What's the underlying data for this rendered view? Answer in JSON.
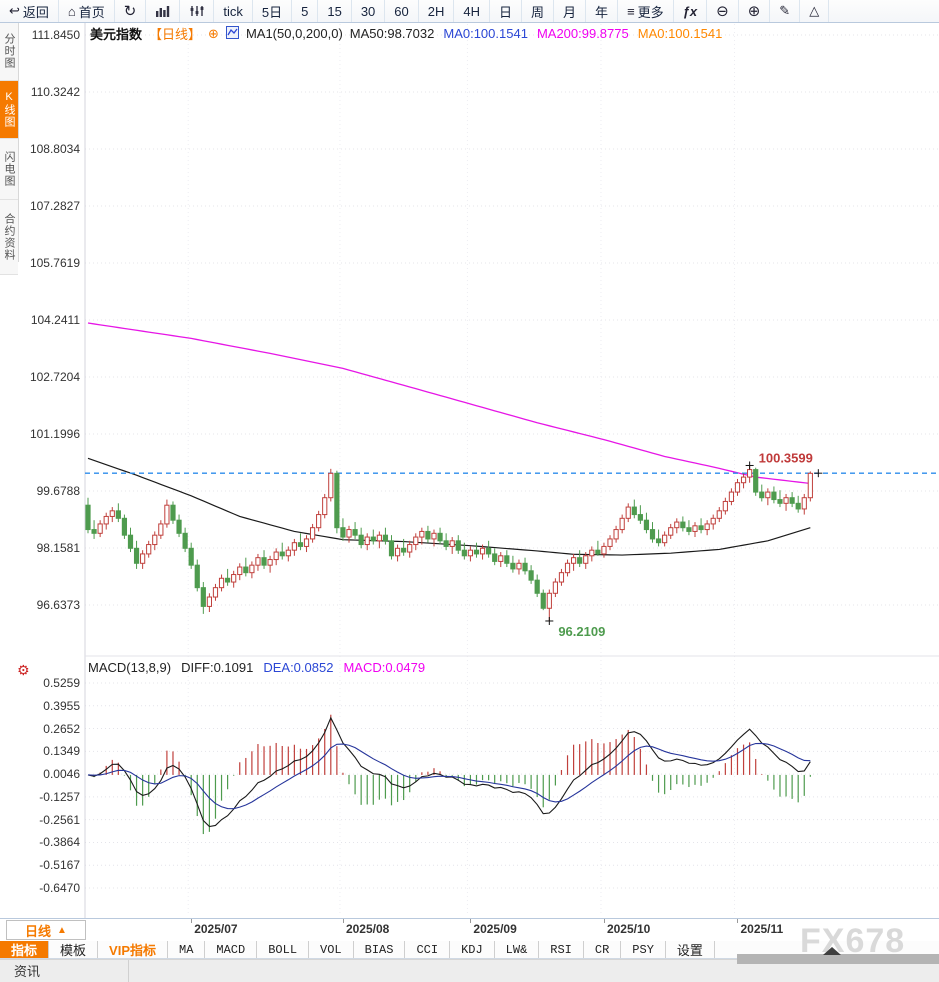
{
  "toolbar": {
    "items": [
      {
        "name": "back",
        "icon": "back",
        "label": "返回"
      },
      {
        "name": "home",
        "icon": "home",
        "label": "首页"
      },
      {
        "name": "refresh",
        "icon": "refresh",
        "label": ""
      },
      {
        "name": "chart-style-bars",
        "icon": "bar-chart",
        "label": ""
      },
      {
        "name": "chart-style-candles",
        "icon": "sliders",
        "label": ""
      },
      {
        "name": "interval-tick",
        "icon": "",
        "label": "tick"
      },
      {
        "name": "interval-5d",
        "icon": "",
        "label": "5日"
      },
      {
        "name": "interval-5",
        "icon": "",
        "label": "5"
      },
      {
        "name": "interval-15",
        "icon": "",
        "label": "15"
      },
      {
        "name": "interval-30",
        "icon": "",
        "label": "30"
      },
      {
        "name": "interval-60",
        "icon": "",
        "label": "60"
      },
      {
        "name": "interval-2h",
        "icon": "",
        "label": "2H"
      },
      {
        "name": "interval-4h",
        "icon": "",
        "label": "4H"
      },
      {
        "name": "interval-day",
        "icon": "",
        "label": "日"
      },
      {
        "name": "interval-week",
        "icon": "",
        "label": "周"
      },
      {
        "name": "interval-month",
        "icon": "",
        "label": "月"
      },
      {
        "name": "interval-year",
        "icon": "",
        "label": "年"
      },
      {
        "name": "more-menu",
        "icon": "menu",
        "label": "更多"
      },
      {
        "name": "indicator-fx",
        "icon": "fx",
        "label": ""
      },
      {
        "name": "zoom-out",
        "icon": "zoom-out",
        "label": ""
      },
      {
        "name": "zoom-in",
        "icon": "zoom-in",
        "label": ""
      },
      {
        "name": "draw-tool",
        "icon": "pencil",
        "label": ""
      },
      {
        "name": "shape-tool",
        "icon": "triangle",
        "label": ""
      }
    ]
  },
  "sidebar": {
    "items": [
      {
        "label": "分时图",
        "active": false
      },
      {
        "label": "K线图",
        "active": true
      },
      {
        "label": "闪电图",
        "active": false
      },
      {
        "label": "合约资料",
        "active": false
      }
    ]
  },
  "chart_header": {
    "symbol": "美元指数",
    "period": "【日线】",
    "add_icon": "⊕",
    "ma_settings": "MA1(50,0,200,0)",
    "values": [
      {
        "label": "MA50:98.7032",
        "color": "#222222"
      },
      {
        "label": "MA0:100.1541",
        "color": "#2b47d5"
      },
      {
        "label": "MA200:99.8775",
        "color": "#f000f0"
      },
      {
        "label": "MA0:100.1541",
        "color": "#ff8800"
      }
    ]
  },
  "macd_header": {
    "title": "MACD(13,8,9)",
    "diff": "DIFF:0.1091",
    "dea": "DEA:0.0852",
    "macd": "MACD:0.0479",
    "colors": {
      "title": "#222222",
      "diff": "#222222",
      "dea": "#2b47d5",
      "macd": "#f000f0"
    }
  },
  "period_button": {
    "label": "日线",
    "arrow": "▲"
  },
  "indicator_bar": {
    "items": [
      {
        "label": "指标",
        "style": "active"
      },
      {
        "label": "模板",
        "style": ""
      },
      {
        "label": "VIP指标",
        "style": "vip"
      },
      {
        "label": "MA",
        "style": "mono"
      },
      {
        "label": "MACD",
        "style": "mono"
      },
      {
        "label": "BOLL",
        "style": "mono"
      },
      {
        "label": "VOL",
        "style": "mono"
      },
      {
        "label": "BIAS",
        "style": "mono"
      },
      {
        "label": "CCI",
        "style": "mono"
      },
      {
        "label": "KDJ",
        "style": "mono"
      },
      {
        "label": "LW&",
        "style": "mono"
      },
      {
        "label": "RSI",
        "style": "mono"
      },
      {
        "label": "CR",
        "style": "mono"
      },
      {
        "label": "PSY",
        "style": "mono"
      },
      {
        "label": "设置",
        "style": ""
      }
    ]
  },
  "bottom": {
    "news_label": "资讯"
  },
  "watermark": "FX678",
  "colors": {
    "accent": "#f57a00",
    "up": "#c0403c",
    "down": "#4e9b4e",
    "ma50": "#1a1a1a",
    "ma200": "#e616e6",
    "diff_line": "#1a1a1a",
    "dea_line": "#26359b",
    "last_price_line": "#2d8ceb",
    "high_label": "#c03a3a",
    "low_label": "#4e9b4e",
    "grid": "#e4e4ea"
  },
  "chart_data": {
    "type": "candlestick+macd",
    "title": "美元指数 日线 (US Dollar Index, daily)",
    "y_axis_labels": [
      "111.8450",
      "110.3242",
      "108.8034",
      "107.2827",
      "105.7619",
      "104.2411",
      "102.7204",
      "101.1996",
      "99.6788",
      "98.1581",
      "96.6373"
    ],
    "macd_axis_labels": [
      "0.5259",
      "0.3955",
      "0.2652",
      "0.1349",
      "0.0046",
      "-0.1257",
      "-0.2561",
      "-0.3864",
      "-0.5167",
      "-0.6470"
    ],
    "x_labels": [
      "2025/07",
      "2025/08",
      "2025/09",
      "2025/10",
      "2025/11"
    ],
    "month_tick_indices": [
      17,
      42,
      63,
      85,
      107
    ],
    "last_price": 100.1541,
    "last_price_label": "100.1541",
    "high_marker": {
      "index": 109,
      "value": 100.3599,
      "label": "100.3599"
    },
    "low_marker": {
      "index": 76,
      "value": 96.2109,
      "label": "96.2109"
    },
    "macd_params": {
      "short": 8,
      "long": 13,
      "mid": 9,
      "diff": 0.1091,
      "dea": 0.0852,
      "bar": 0.0479
    },
    "ma50_waypoints": [
      [
        0,
        100.55
      ],
      [
        8,
        100.1
      ],
      [
        17,
        99.55
      ],
      [
        25,
        99.0
      ],
      [
        34,
        98.6
      ],
      [
        42,
        98.38
      ],
      [
        52,
        98.33
      ],
      [
        63,
        98.22
      ],
      [
        74,
        98.08
      ],
      [
        80,
        97.99
      ],
      [
        88,
        97.97
      ],
      [
        96,
        98.02
      ],
      [
        104,
        98.12
      ],
      [
        112,
        98.35
      ],
      [
        119,
        98.7
      ]
    ],
    "ma200_waypoints": [
      [
        0,
        104.16
      ],
      [
        17,
        103.75
      ],
      [
        30,
        103.35
      ],
      [
        42,
        102.95
      ],
      [
        52,
        102.5
      ],
      [
        63,
        102.0
      ],
      [
        74,
        101.5
      ],
      [
        85,
        101.05
      ],
      [
        95,
        100.6
      ],
      [
        103,
        100.32
      ],
      [
        110,
        100.05
      ],
      [
        119,
        99.88
      ]
    ],
    "ohlc": [
      [
        99.3,
        99.5,
        98.55,
        98.65
      ],
      [
        98.65,
        98.9,
        98.4,
        98.55
      ],
      [
        98.55,
        98.9,
        98.45,
        98.8
      ],
      [
        98.8,
        99.1,
        98.65,
        99.0
      ],
      [
        99.0,
        99.25,
        98.85,
        99.15
      ],
      [
        99.15,
        99.35,
        98.85,
        98.95
      ],
      [
        98.95,
        99.05,
        98.4,
        98.5
      ],
      [
        98.5,
        98.7,
        98.05,
        98.15
      ],
      [
        98.15,
        98.35,
        97.6,
        97.75
      ],
      [
        97.75,
        98.1,
        97.6,
        98.0
      ],
      [
        98.0,
        98.35,
        97.9,
        98.25
      ],
      [
        98.25,
        98.6,
        98.1,
        98.5
      ],
      [
        98.5,
        98.9,
        98.4,
        98.8
      ],
      [
        98.8,
        99.45,
        98.7,
        99.3
      ],
      [
        99.3,
        99.4,
        98.8,
        98.9
      ],
      [
        98.9,
        99.05,
        98.45,
        98.55
      ],
      [
        98.55,
        98.7,
        98.05,
        98.15
      ],
      [
        98.15,
        98.3,
        97.6,
        97.7
      ],
      [
        97.7,
        97.85,
        97.0,
        97.1
      ],
      [
        97.1,
        97.25,
        96.4,
        96.6
      ],
      [
        96.6,
        96.95,
        96.45,
        96.85
      ],
      [
        96.85,
        97.2,
        96.75,
        97.1
      ],
      [
        97.1,
        97.45,
        97.0,
        97.35
      ],
      [
        97.35,
        97.6,
        97.15,
        97.25
      ],
      [
        97.25,
        97.55,
        97.1,
        97.45
      ],
      [
        97.45,
        97.75,
        97.3,
        97.65
      ],
      [
        97.65,
        97.9,
        97.4,
        97.5
      ],
      [
        97.5,
        97.8,
        97.35,
        97.7
      ],
      [
        97.7,
        98.0,
        97.55,
        97.9
      ],
      [
        97.9,
        98.1,
        97.6,
        97.7
      ],
      [
        97.7,
        97.95,
        97.5,
        97.85
      ],
      [
        97.85,
        98.15,
        97.7,
        98.05
      ],
      [
        98.05,
        98.3,
        97.85,
        97.95
      ],
      [
        97.95,
        98.2,
        97.8,
        98.1
      ],
      [
        98.1,
        98.4,
        97.95,
        98.3
      ],
      [
        98.3,
        98.55,
        98.1,
        98.2
      ],
      [
        98.2,
        98.5,
        98.05,
        98.4
      ],
      [
        98.4,
        98.8,
        98.3,
        98.7
      ],
      [
        98.7,
        99.15,
        98.6,
        99.05
      ],
      [
        99.05,
        99.6,
        98.95,
        99.5
      ],
      [
        99.5,
        100.27,
        99.4,
        100.15
      ],
      [
        100.15,
        100.22,
        98.55,
        98.7
      ],
      [
        98.7,
        98.95,
        98.35,
        98.45
      ],
      [
        98.45,
        98.75,
        98.3,
        98.65
      ],
      [
        98.65,
        98.85,
        98.4,
        98.5
      ],
      [
        98.5,
        98.7,
        98.15,
        98.25
      ],
      [
        98.25,
        98.55,
        98.1,
        98.45
      ],
      [
        98.45,
        98.65,
        98.25,
        98.35
      ],
      [
        98.35,
        98.6,
        98.15,
        98.5
      ],
      [
        98.5,
        98.7,
        98.25,
        98.35
      ],
      [
        98.35,
        98.5,
        97.85,
        97.95
      ],
      [
        97.95,
        98.25,
        97.8,
        98.15
      ],
      [
        98.15,
        98.4,
        97.95,
        98.05
      ],
      [
        98.05,
        98.35,
        97.9,
        98.25
      ],
      [
        98.25,
        98.55,
        98.1,
        98.45
      ],
      [
        98.45,
        98.7,
        98.25,
        98.6
      ],
      [
        98.6,
        98.75,
        98.3,
        98.4
      ],
      [
        98.4,
        98.65,
        98.2,
        98.55
      ],
      [
        98.55,
        98.7,
        98.25,
        98.35
      ],
      [
        98.35,
        98.55,
        98.1,
        98.2
      ],
      [
        98.2,
        98.45,
        98.0,
        98.35
      ],
      [
        98.35,
        98.5,
        98.0,
        98.1
      ],
      [
        98.1,
        98.3,
        97.85,
        97.95
      ],
      [
        97.95,
        98.2,
        97.8,
        98.1
      ],
      [
        98.1,
        98.3,
        97.9,
        98.0
      ],
      [
        98.0,
        98.25,
        97.85,
        98.15
      ],
      [
        98.15,
        98.35,
        97.9,
        98.0
      ],
      [
        98.0,
        98.15,
        97.7,
        97.8
      ],
      [
        97.8,
        98.05,
        97.65,
        97.95
      ],
      [
        97.95,
        98.1,
        97.65,
        97.75
      ],
      [
        97.75,
        97.95,
        97.5,
        97.6
      ],
      [
        97.6,
        97.85,
        97.45,
        97.75
      ],
      [
        97.75,
        97.9,
        97.45,
        97.55
      ],
      [
        97.55,
        97.7,
        97.2,
        97.3
      ],
      [
        97.3,
        97.45,
        96.85,
        96.95
      ],
      [
        96.95,
        97.05,
        96.5,
        96.55
      ],
      [
        96.55,
        97.05,
        96.21,
        96.95
      ],
      [
        96.95,
        97.35,
        96.85,
        97.25
      ],
      [
        97.25,
        97.6,
        97.15,
        97.5
      ],
      [
        97.5,
        97.85,
        97.4,
        97.75
      ],
      [
        97.75,
        98.0,
        97.55,
        97.9
      ],
      [
        97.9,
        98.1,
        97.65,
        97.75
      ],
      [
        97.75,
        98.05,
        97.6,
        97.95
      ],
      [
        97.95,
        98.2,
        97.8,
        98.1
      ],
      [
        98.1,
        98.35,
        97.95,
        98.0
      ],
      [
        98.0,
        98.3,
        97.9,
        98.2
      ],
      [
        98.2,
        98.5,
        98.1,
        98.4
      ],
      [
        98.4,
        98.75,
        98.3,
        98.65
      ],
      [
        98.65,
        99.05,
        98.55,
        98.95
      ],
      [
        98.95,
        99.35,
        98.85,
        99.25
      ],
      [
        99.25,
        99.45,
        98.95,
        99.05
      ],
      [
        99.05,
        99.3,
        98.8,
        98.9
      ],
      [
        98.9,
        99.1,
        98.55,
        98.65
      ],
      [
        98.65,
        98.85,
        98.3,
        98.4
      ],
      [
        98.4,
        98.65,
        98.2,
        98.3
      ],
      [
        98.3,
        98.6,
        98.2,
        98.5
      ],
      [
        98.5,
        98.8,
        98.4,
        98.7
      ],
      [
        98.7,
        98.95,
        98.55,
        98.85
      ],
      [
        98.85,
        99.0,
        98.6,
        98.7
      ],
      [
        98.7,
        98.9,
        98.5,
        98.6
      ],
      [
        98.6,
        98.85,
        98.45,
        98.75
      ],
      [
        98.75,
        98.95,
        98.55,
        98.65
      ],
      [
        98.65,
        98.9,
        98.5,
        98.8
      ],
      [
        98.8,
        99.05,
        98.65,
        98.95
      ],
      [
        98.95,
        99.25,
        98.85,
        99.15
      ],
      [
        99.15,
        99.5,
        99.05,
        99.4
      ],
      [
        99.4,
        99.75,
        99.3,
        99.65
      ],
      [
        99.65,
        100.0,
        99.55,
        99.9
      ],
      [
        99.9,
        100.15,
        99.75,
        100.05
      ],
      [
        100.05,
        100.36,
        99.9,
        100.25
      ],
      [
        100.25,
        100.3,
        99.55,
        99.65
      ],
      [
        99.65,
        99.85,
        99.4,
        99.5
      ],
      [
        99.5,
        99.75,
        99.3,
        99.65
      ],
      [
        99.65,
        99.8,
        99.35,
        99.45
      ],
      [
        99.45,
        99.7,
        99.25,
        99.35
      ],
      [
        99.35,
        99.6,
        99.15,
        99.5
      ],
      [
        99.5,
        99.65,
        99.25,
        99.35
      ],
      [
        99.35,
        99.55,
        99.1,
        99.2
      ],
      [
        99.2,
        99.6,
        99.05,
        99.5
      ],
      [
        99.5,
        100.2,
        99.4,
        100.15
      ]
    ]
  }
}
